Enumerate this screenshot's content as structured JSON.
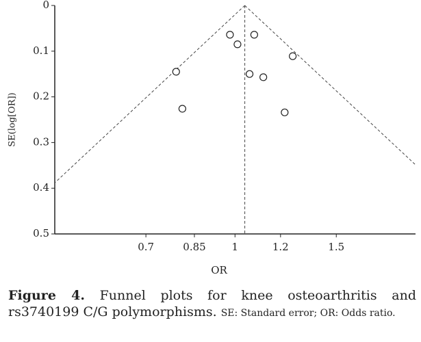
{
  "chart_data": {
    "type": "funnel",
    "xlabel": "OR",
    "ylabel": "SE(log[OR])",
    "x_log": true,
    "xlim": [
      0.486,
      2.06
    ],
    "xticks": [
      0.7,
      0.85,
      1,
      1.2,
      1.5
    ],
    "ylim": [
      0,
      0.5
    ],
    "yticks": [
      0,
      0.1,
      0.2,
      0.3,
      0.4,
      0.5
    ],
    "y_inverted": true,
    "pooled_or": 1.04,
    "x": [
      0.98,
      1.08,
      1.01,
      1.26,
      0.79,
      1.06,
      1.12,
      0.81,
      1.22
    ],
    "values": [
      0.064,
      0.064,
      0.085,
      0.111,
      0.145,
      0.15,
      0.157,
      0.226,
      0.234
    ],
    "color": "#222"
  },
  "caption": {
    "label": "Figure 4.",
    "text": "Funnel plots for knee osteoarthritis and rs3740199 C/G polymorphisms.",
    "note": "SE: Standard error; OR: Odds ratio."
  }
}
